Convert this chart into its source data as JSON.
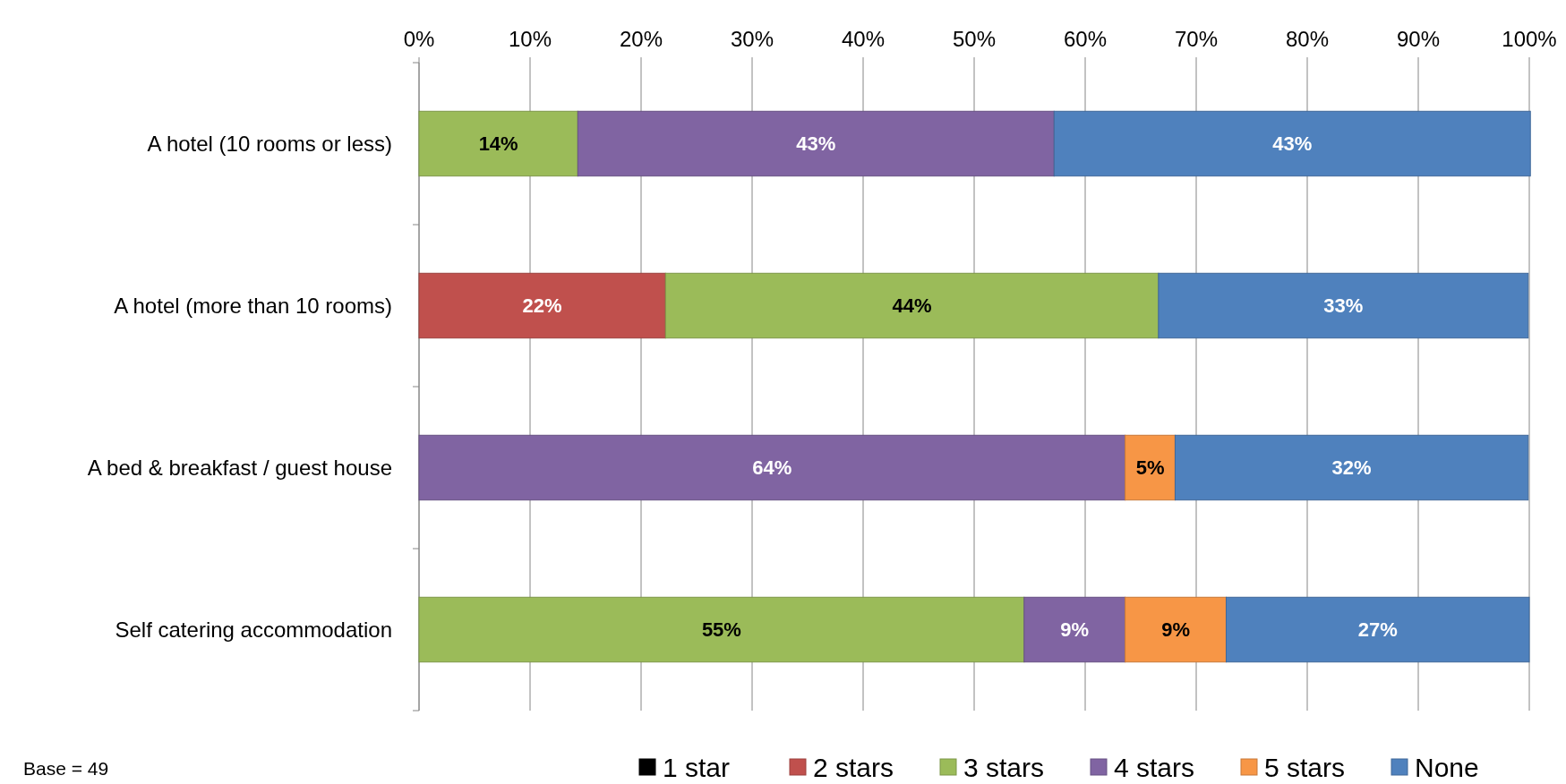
{
  "chart_data": {
    "type": "bar",
    "orientation": "horizontal",
    "stacked": true,
    "categories": [
      "A hotel (10 rooms or less)",
      "A hotel (more than 10 rooms)",
      "A bed & breakfast / guest house",
      "Self catering accommodation"
    ],
    "series": [
      {
        "name": "1 star",
        "color": "#000000",
        "values": [
          null,
          null,
          null,
          null
        ],
        "value_labels": [
          null,
          null,
          null,
          null
        ]
      },
      {
        "name": "2 stars",
        "color": "#c0504d",
        "values": [
          null,
          22.2,
          null,
          null
        ],
        "value_labels": [
          null,
          "22%",
          null,
          null
        ]
      },
      {
        "name": "3 stars",
        "color": "#9bbb59",
        "values": [
          14.3,
          44.4,
          null,
          54.5
        ],
        "value_labels": [
          "14%",
          "44%",
          null,
          "55%"
        ]
      },
      {
        "name": "4 stars",
        "color": "#8064a2",
        "values": [
          42.9,
          null,
          63.6,
          9.1
        ],
        "value_labels": [
          "43%",
          null,
          "64%",
          "9%"
        ]
      },
      {
        "name": "5 stars",
        "color": "#f79646",
        "values": [
          null,
          null,
          4.5,
          9.1
        ],
        "value_labels": [
          null,
          null,
          "5%",
          "9%"
        ]
      },
      {
        "name": "None",
        "color": "#4f81bd",
        "values": [
          42.9,
          33.3,
          31.8,
          27.3
        ],
        "value_labels": [
          "43%",
          "33%",
          "32%",
          "27%"
        ]
      }
    ],
    "xlim": [
      0,
      100
    ],
    "xticks": [
      {
        "value": 0,
        "label": "0%"
      },
      {
        "value": 10,
        "label": "10%"
      },
      {
        "value": 20,
        "label": "20%"
      },
      {
        "value": 30,
        "label": "30%"
      },
      {
        "value": 40,
        "label": "40%"
      },
      {
        "value": 50,
        "label": "50%"
      },
      {
        "value": 60,
        "label": "60%"
      },
      {
        "value": 70,
        "label": "70%"
      },
      {
        "value": 80,
        "label": "80%"
      },
      {
        "value": 90,
        "label": "90%"
      },
      {
        "value": 100,
        "label": "100%"
      }
    ],
    "grid": "x",
    "legend": "bottom",
    "annotations": [
      "Base = 49"
    ]
  }
}
